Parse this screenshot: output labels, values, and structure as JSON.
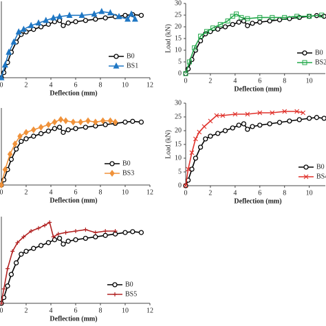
{
  "chart_data": [
    {
      "type": "line",
      "xlabel": "Deflection (mm)",
      "xlim": [
        0,
        12
      ],
      "ylim": [
        0,
        30
      ],
      "xticks": [
        0,
        2,
        4,
        6,
        8,
        10,
        12
      ],
      "legend": "lower right",
      "series": [
        {
          "name": "B0",
          "color": "#000000",
          "marker": "circle",
          "x": [
            0,
            0.2,
            0.5,
            0.8,
            1.2,
            1.6,
            2,
            2.6,
            3.2,
            3.8,
            4.3,
            4.7,
            5,
            5.4,
            6,
            6.8,
            7.6,
            8.4,
            9.2,
            10,
            10.6,
            11.3
          ],
          "values": [
            0,
            2,
            6,
            10,
            14,
            17,
            18,
            19,
            20,
            21,
            22,
            22.5,
            20.5,
            21.5,
            22,
            22.5,
            23,
            23.5,
            24,
            24.5,
            24.8,
            24.5
          ]
        },
        {
          "name": "BS1",
          "color": "#1f77c4",
          "marker": "triangle",
          "x": [
            0,
            0.3,
            0.6,
            1,
            1.4,
            1.8,
            2.4,
            3,
            3.6,
            4.2,
            4.7,
            5.5,
            6.5,
            7.5,
            8.1,
            8.8,
            9.5,
            10.2,
            10.5,
            10.8
          ],
          "values": [
            0,
            5,
            10,
            14,
            18,
            19,
            20.5,
            21.5,
            22.5,
            23.5,
            24,
            24.5,
            24.5,
            25,
            26,
            25.5,
            24,
            23,
            25,
            23
          ]
        }
      ]
    },
    {
      "type": "line",
      "xlabel": "Deflection (mm)",
      "ylabel": "Load (kN)",
      "xlim": [
        0,
        11.3
      ],
      "ylim": [
        0,
        30
      ],
      "xticks": [
        0,
        2,
        4,
        6,
        8,
        10
      ],
      "yticks": [
        0,
        5,
        10,
        15,
        20,
        25,
        30
      ],
      "legend": "lower right",
      "series": [
        {
          "name": "B0",
          "color": "#000000",
          "marker": "circle",
          "x": [
            0,
            0.2,
            0.5,
            0.8,
            1.2,
            1.6,
            2,
            2.6,
            3.2,
            3.8,
            4.3,
            4.7,
            5,
            5.4,
            6,
            6.8,
            7.6,
            8.4,
            9.2,
            10,
            10.6,
            11.2
          ],
          "values": [
            0,
            2,
            6,
            10,
            14,
            17,
            18,
            19,
            20,
            21,
            22,
            22.5,
            20.5,
            21.5,
            22,
            22.5,
            23,
            23.5,
            24,
            24.5,
            24.8,
            24.5
          ]
        },
        {
          "name": "BS2",
          "color": "#22a84a",
          "marker": "square",
          "x": [
            0,
            0.3,
            0.7,
            1.2,
            1.7,
            2.2,
            2.8,
            3.4,
            3.8,
            4.1,
            4.5,
            5,
            6,
            7,
            8,
            9,
            10,
            11
          ],
          "values": [
            0,
            5,
            11,
            16,
            18,
            19.5,
            21,
            22.5,
            24.5,
            25.5,
            24,
            23.5,
            24,
            24,
            24,
            24.5,
            24.5,
            25
          ]
        }
      ]
    },
    {
      "type": "line",
      "xlabel": "Deflection (mm)",
      "xlim": [
        0,
        12
      ],
      "ylim": [
        0,
        30
      ],
      "xticks": [
        0,
        2,
        4,
        6,
        8,
        10,
        12
      ],
      "legend": "lower right",
      "series": [
        {
          "name": "B0",
          "color": "#000000",
          "marker": "circle",
          "x": [
            0,
            0.2,
            0.5,
            0.8,
            1.2,
            1.6,
            2,
            2.6,
            3.2,
            3.8,
            4.3,
            4.7,
            5,
            5.4,
            6,
            6.8,
            7.6,
            8.4,
            9.2,
            10,
            10.6,
            11.3
          ],
          "values": [
            0,
            2,
            6,
            10,
            14,
            17,
            18,
            19,
            20,
            21,
            22,
            22.5,
            20.5,
            21.5,
            22,
            22.5,
            23,
            23.5,
            24,
            24.5,
            24.8,
            24.5
          ]
        },
        {
          "name": "BS3",
          "color": "#f0923a",
          "marker": "diamond",
          "x": [
            0,
            0.3,
            0.7,
            1.1,
            1.5,
            2,
            2.6,
            3.2,
            3.8,
            4.3,
            4.8,
            5.2,
            5.8,
            6.4,
            7,
            7.6,
            8.2,
            8.8,
            9.2
          ],
          "values": [
            0,
            6,
            12,
            16,
            19,
            20.5,
            21.5,
            22.5,
            23.5,
            24.5,
            25.5,
            25,
            24.5,
            24.5,
            25,
            24.5,
            25,
            25,
            24.5
          ]
        }
      ]
    },
    {
      "type": "line",
      "xlabel": "Deflection (mm)",
      "ylabel": "Load (kN)",
      "xlim": [
        0,
        11.3
      ],
      "ylim": [
        0,
        30
      ],
      "xticks": [
        0,
        2,
        4,
        6,
        8,
        10
      ],
      "yticks": [
        0,
        5,
        10,
        15,
        20,
        25,
        30
      ],
      "legend": "lower right",
      "series": [
        {
          "name": "B0",
          "color": "#000000",
          "marker": "circle",
          "x": [
            0,
            0.2,
            0.5,
            0.8,
            1.2,
            1.6,
            2,
            2.6,
            3.2,
            3.8,
            4.3,
            4.7,
            5,
            5.4,
            6,
            6.8,
            7.6,
            8.4,
            9.2,
            10,
            10.6,
            11.2
          ],
          "values": [
            0,
            2,
            6,
            10,
            14,
            17,
            18,
            19,
            20,
            21,
            22,
            22.5,
            20.5,
            21.5,
            22,
            22.5,
            23,
            23.5,
            24,
            24.5,
            24.8,
            24.5
          ]
        },
        {
          "name": "BS4",
          "color": "#e0302a",
          "marker": "cross",
          "x": [
            0,
            0.2,
            0.5,
            0.8,
            1.1,
            1.5,
            2,
            2.5,
            3,
            4,
            5,
            6,
            7,
            8,
            9,
            9.5
          ],
          "values": [
            0,
            6,
            12,
            17,
            19.5,
            21.5,
            23.5,
            25.5,
            25.5,
            26,
            26,
            26.5,
            26.5,
            27,
            27,
            26.5
          ]
        }
      ]
    },
    {
      "type": "line",
      "xlabel": "Deflection (mm)",
      "xlim": [
        0,
        12
      ],
      "ylim": [
        0,
        30
      ],
      "xticks": [
        0,
        2,
        4,
        6,
        8,
        10,
        12
      ],
      "legend": "lower right",
      "series": [
        {
          "name": "B0",
          "color": "#000000",
          "marker": "circle",
          "x": [
            0,
            0.2,
            0.5,
            0.8,
            1.2,
            1.6,
            2,
            2.6,
            3.2,
            3.8,
            4.3,
            4.7,
            5,
            5.4,
            6,
            6.8,
            7.6,
            8.4,
            9.2,
            10,
            10.6,
            11.3
          ],
          "values": [
            0,
            2,
            6,
            10,
            14,
            17,
            18,
            19,
            20,
            21,
            22,
            22.5,
            20.5,
            21.5,
            22,
            22.5,
            23,
            23.5,
            24,
            24.5,
            24.8,
            24.5
          ]
        },
        {
          "name": "BS5",
          "color": "#b22222",
          "marker": "plus",
          "x": [
            0,
            0.2,
            0.5,
            0.9,
            1.3,
            1.8,
            2.4,
            3,
            3.5,
            3.9,
            4.2,
            4.6,
            5.2,
            6,
            6.8,
            7.6,
            8.4,
            9.2
          ],
          "values": [
            0,
            5,
            12,
            18,
            21,
            23,
            25,
            26,
            27,
            28,
            23,
            24,
            24.5,
            25,
            25.5,
            24.5,
            25,
            25
          ]
        }
      ]
    }
  ]
}
